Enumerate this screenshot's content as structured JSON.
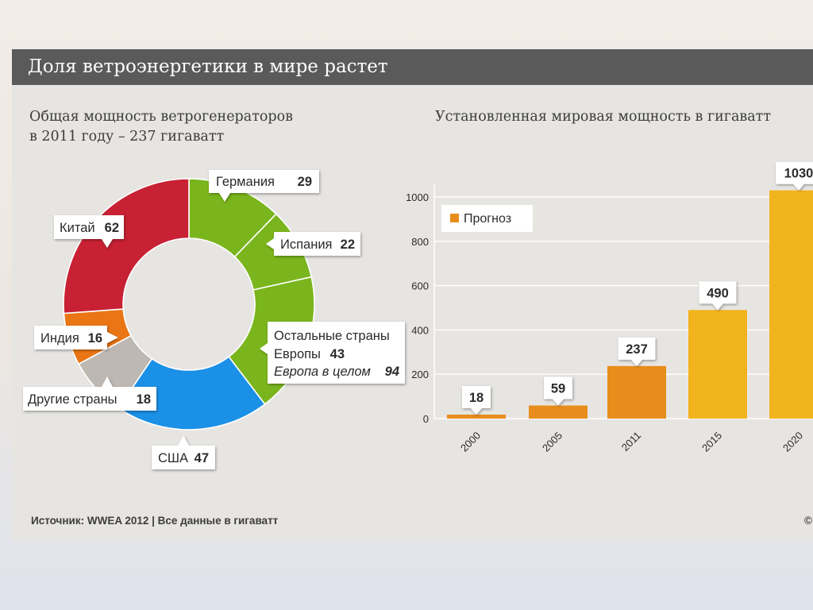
{
  "page_title": "Доля ветроэнергетики в мире растет",
  "footer": "Источник: WWEA 2012 | Все данные в гигаватт",
  "copyright": "©",
  "chart_data": [
    {
      "type": "pie",
      "title_line1": "Общая мощность ветрогенераторов",
      "title_line2": "в 2011 году – 237 гигаватт",
      "total": 237,
      "slices": [
        {
          "id": "germany",
          "label": "Германия",
          "value": 29,
          "color": "#7ab51d"
        },
        {
          "id": "spain",
          "label": "Испания",
          "value": 22,
          "color": "#7ab51d"
        },
        {
          "id": "rest-europe",
          "label_line1": "Остальные страны",
          "label_line2": "Европы",
          "value": 43,
          "color": "#7ab51d",
          "note_label": "Европа в целом",
          "note_value": 94
        },
        {
          "id": "usa",
          "label": "США",
          "value": 47,
          "color": "#1a90e6"
        },
        {
          "id": "other",
          "label": "Другие страны",
          "value": 18,
          "color": "#bdb8b1"
        },
        {
          "id": "india",
          "label": "Индия",
          "value": 16,
          "color": "#ea7514"
        },
        {
          "id": "china",
          "label": "Китай",
          "value": 62,
          "color": "#c72133"
        }
      ]
    },
    {
      "type": "bar",
      "title": "Установленная мировая мощность в гигаватт",
      "categories": [
        "2000",
        "2005",
        "2011",
        "2015",
        "2020"
      ],
      "values": [
        18,
        59,
        237,
        490,
        1030
      ],
      "value_labels": [
        "18",
        "59",
        "237",
        "490",
        "1030"
      ],
      "forecast": [
        false,
        false,
        false,
        true,
        true
      ],
      "colors": {
        "actual": "#e88d1b",
        "forecast": "#f2b41c"
      },
      "legend": "Прогноз",
      "legend_position": "top-left",
      "ylim": [
        0,
        1050
      ],
      "yticks": [
        0,
        200,
        400,
        600,
        800,
        1000
      ],
      "ytick_labels": [
        "0",
        "200",
        "400",
        "600",
        "800",
        "1000"
      ],
      "grid": true
    }
  ]
}
